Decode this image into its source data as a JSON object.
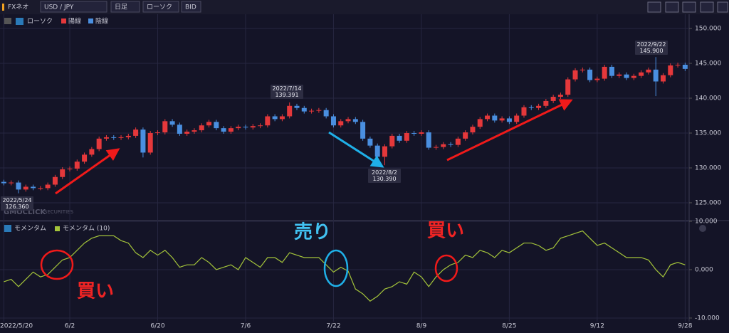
{
  "toolbar": {
    "brand": "FXネオ",
    "symbol": "USD / JPY",
    "period": "日足",
    "chart_style": "ローソク",
    "price_type": "BID"
  },
  "watermark": {
    "brand": "GMOCLICK",
    "suffix": "SECURITIES"
  },
  "chart_data": [
    {
      "type": "candlestick",
      "name": "ローソク",
      "up_name": "陽線",
      "down_name": "陰線",
      "up_color": "#e5383b",
      "down_color": "#4a8fe0",
      "grid": true,
      "categories": [
        "2022/5/20",
        null,
        null,
        null,
        null,
        null,
        null,
        null,
        null,
        "6/2",
        null,
        null,
        null,
        null,
        null,
        null,
        null,
        null,
        null,
        null,
        null,
        "6/20",
        null,
        null,
        null,
        null,
        null,
        null,
        null,
        null,
        null,
        null,
        null,
        "7/6",
        null,
        null,
        null,
        null,
        null,
        null,
        null,
        null,
        null,
        null,
        null,
        "7/22",
        null,
        null,
        null,
        null,
        null,
        null,
        null,
        null,
        null,
        null,
        null,
        "8/9",
        null,
        null,
        null,
        null,
        null,
        null,
        null,
        null,
        null,
        null,
        null,
        "8/25",
        null,
        null,
        null,
        null,
        null,
        null,
        null,
        null,
        null,
        null,
        null,
        "9/12",
        null,
        null,
        null,
        null,
        null,
        null,
        null,
        null,
        null,
        null,
        null,
        "9/28"
      ],
      "open": [
        128.0,
        127.8,
        127.9,
        126.9,
        127.3,
        127.1,
        127.1,
        127.6,
        128.7,
        129.8,
        129.9,
        130.9,
        131.9,
        132.7,
        134.2,
        134.4,
        134.3,
        134.4,
        134.6,
        135.5,
        132.2,
        135.0,
        135.1,
        136.7,
        136.2,
        134.9,
        135.2,
        135.4,
        136.1,
        136.6,
        135.7,
        135.2,
        135.7,
        135.9,
        135.8,
        136.0,
        136.1,
        137.4,
        137.0,
        137.4,
        138.9,
        138.6,
        138.1,
        138.2,
        138.3,
        137.4,
        136.1,
        136.7,
        137.0,
        136.6,
        134.2,
        133.2,
        131.6,
        133.1,
        134.6,
        133.9,
        135.0,
        134.9,
        135.1,
        132.9,
        133.0,
        133.4,
        133.3,
        134.2,
        135.1,
        135.9,
        137.0,
        137.5,
        136.8,
        137.1,
        136.6,
        137.5,
        138.7,
        138.6,
        138.9,
        139.6,
        140.2,
        140.5,
        142.7,
        144.0,
        144.1,
        142.6,
        142.8,
        144.5,
        143.2,
        143.4,
        142.9,
        143.2,
        143.7,
        144.1,
        142.4,
        143.3,
        144.7,
        144.8
      ],
      "high": [
        128.3,
        128.2,
        128.2,
        127.6,
        127.6,
        127.4,
        127.9,
        129.0,
        130.1,
        130.2,
        131.2,
        132.2,
        133.0,
        134.5,
        134.7,
        134.7,
        134.7,
        134.9,
        135.8,
        135.8,
        135.3,
        135.4,
        137.0,
        137.0,
        136.5,
        135.5,
        135.7,
        136.4,
        136.9,
        136.9,
        136.0,
        136.0,
        136.2,
        136.2,
        136.3,
        136.4,
        137.7,
        137.7,
        137.7,
        139.391,
        139.2,
        138.9,
        138.5,
        138.6,
        138.6,
        137.7,
        137.0,
        137.3,
        137.3,
        136.9,
        134.5,
        133.5,
        133.4,
        134.9,
        134.9,
        135.3,
        135.3,
        135.4,
        135.4,
        133.3,
        133.7,
        133.7,
        134.5,
        135.4,
        136.2,
        137.3,
        137.8,
        137.8,
        137.4,
        137.4,
        137.8,
        139.0,
        139.0,
        139.2,
        139.9,
        140.5,
        140.8,
        143.0,
        144.3,
        144.4,
        144.4,
        143.1,
        144.8,
        144.8,
        143.7,
        143.7,
        143.5,
        144.0,
        144.4,
        145.9,
        143.6,
        145.0,
        145.1,
        145.1
      ],
      "low": [
        127.5,
        127.5,
        126.36,
        126.6,
        126.8,
        126.8,
        126.8,
        127.3,
        128.4,
        129.5,
        129.6,
        130.6,
        131.6,
        132.4,
        133.9,
        134.0,
        134.0,
        134.1,
        134.3,
        131.5,
        131.9,
        134.7,
        134.8,
        135.9,
        134.6,
        134.6,
        134.9,
        135.1,
        135.8,
        135.4,
        134.9,
        134.9,
        135.4,
        135.5,
        135.5,
        135.7,
        135.8,
        136.7,
        136.7,
        137.1,
        138.3,
        137.8,
        137.8,
        137.9,
        137.1,
        135.8,
        135.8,
        136.4,
        136.3,
        133.9,
        132.9,
        131.3,
        130.39,
        132.8,
        133.6,
        133.6,
        134.6,
        134.6,
        132.6,
        132.6,
        132.7,
        133.0,
        133.0,
        133.9,
        134.8,
        135.6,
        136.7,
        136.5,
        136.5,
        136.3,
        136.3,
        137.2,
        138.3,
        138.3,
        138.6,
        139.3,
        139.9,
        140.2,
        142.4,
        143.7,
        142.3,
        142.3,
        142.5,
        142.9,
        142.9,
        142.6,
        142.6,
        142.9,
        143.4,
        140.3,
        142.1,
        143.0,
        144.4,
        143.9
      ],
      "close": [
        127.8,
        127.9,
        126.9,
        127.3,
        127.1,
        127.1,
        127.6,
        128.7,
        129.8,
        129.9,
        130.9,
        131.9,
        132.7,
        134.2,
        134.4,
        134.3,
        134.4,
        134.6,
        135.5,
        132.2,
        135.0,
        135.1,
        136.7,
        136.2,
        134.9,
        135.2,
        135.4,
        136.1,
        136.6,
        135.7,
        135.2,
        135.7,
        135.9,
        135.8,
        136.0,
        136.1,
        137.4,
        137.0,
        137.4,
        138.9,
        138.6,
        138.1,
        138.2,
        138.3,
        137.4,
        136.1,
        136.7,
        137.0,
        136.6,
        134.2,
        133.2,
        131.6,
        133.1,
        134.6,
        133.9,
        135.0,
        134.9,
        135.1,
        132.9,
        133.0,
        133.4,
        133.3,
        134.2,
        135.1,
        135.9,
        137.0,
        137.5,
        136.8,
        137.1,
        136.6,
        137.5,
        138.7,
        138.6,
        138.9,
        139.6,
        140.2,
        140.5,
        142.7,
        144.0,
        144.1,
        142.6,
        142.8,
        144.5,
        143.2,
        143.4,
        142.9,
        143.2,
        143.7,
        144.1,
        142.4,
        143.3,
        144.7,
        144.8,
        144.2
      ],
      "ylim": [
        122.65,
        151.84
      ],
      "yticks": [
        {
          "value": 125,
          "label": "125.000"
        },
        {
          "value": 130,
          "label": "130.000"
        },
        {
          "value": 135,
          "label": "135.000"
        },
        {
          "value": 140,
          "label": "140.000"
        },
        {
          "value": 145,
          "label": "145.000"
        },
        {
          "value": 150,
          "label": "150.000"
        }
      ],
      "annotations": [
        {
          "date": "2022/5/24",
          "price": "126.360"
        },
        {
          "date": "2022/7/14",
          "price": "139.391"
        },
        {
          "date": "2022/8/2",
          "price": "130.390"
        },
        {
          "date": "2022/9/22",
          "price": "145.900"
        }
      ]
    },
    {
      "type": "line",
      "title": "モメンタム",
      "grid": true,
      "series": [
        {
          "name": "モメンタム (10)",
          "color": "#a4c43a",
          "values": [
            -2.5,
            -2.0,
            -3.5,
            -2.0,
            -0.5,
            -1.5,
            -1.0,
            0.5,
            2.0,
            2.5,
            4.0,
            5.5,
            6.5,
            7.0,
            7.0,
            7.0,
            6.0,
            5.5,
            3.5,
            2.5,
            4.0,
            3.0,
            4.0,
            2.5,
            0.5,
            1.0,
            1.0,
            2.5,
            1.5,
            0.0,
            0.5,
            1.0,
            0.0,
            2.5,
            1.5,
            0.5,
            2.5,
            2.5,
            1.5,
            3.5,
            3.0,
            2.5,
            2.5,
            2.5,
            1.0,
            -0.5,
            0.5,
            -0.3,
            -4.0,
            -5.0,
            -6.5,
            -5.5,
            -4.0,
            -3.5,
            -2.5,
            -3.0,
            -0.5,
            -1.5,
            -3.5,
            -1.5,
            0.0,
            1.0,
            1.5,
            3.0,
            2.5,
            4.0,
            3.5,
            2.5,
            4.0,
            3.5,
            4.5,
            5.5,
            5.5,
            5.0,
            4.0,
            4.5,
            6.5,
            7.0,
            7.5,
            8.0,
            6.5,
            5.0,
            5.5,
            4.5,
            3.5,
            2.5,
            2.5,
            2.5,
            2.0,
            0.0,
            -1.5,
            1.0,
            1.5,
            1.0
          ]
        }
      ],
      "ylim": [
        -10.74,
        10.44
      ],
      "yticks": [
        {
          "value": 10,
          "label": "10.000"
        },
        {
          "value": 0,
          "label": "0.000"
        },
        {
          "value": -10,
          "label": "-10.000"
        }
      ],
      "annotations": [
        "買い",
        "売り",
        "買い"
      ]
    }
  ]
}
